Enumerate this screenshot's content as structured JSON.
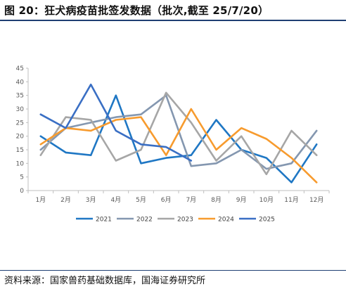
{
  "header": {
    "title": "图 20：狂犬病疫苗批签发数据（批次,截至 25/7/20）"
  },
  "footer": {
    "source": "资料来源：国家兽药基础数据库，国海证券研究所"
  },
  "colors": {
    "rule": "#1f3f73"
  },
  "chart_data": {
    "type": "line",
    "title": "",
    "xlabel": "",
    "ylabel": "",
    "categories": [
      "1月",
      "2月",
      "3月",
      "4月",
      "5月",
      "6月",
      "7月",
      "8月",
      "9月",
      "10月",
      "11月",
      "12月"
    ],
    "ylim": [
      0,
      45
    ],
    "yticks": [
      0,
      5,
      10,
      15,
      20,
      25,
      30,
      35,
      40,
      45
    ],
    "grid": false,
    "legend_position": "bottom",
    "series": [
      {
        "name": "2021",
        "color": "#1f77c4",
        "values": [
          20,
          14,
          13,
          35,
          10,
          12,
          13,
          26,
          15,
          12,
          3,
          17
        ]
      },
      {
        "name": "2022",
        "color": "#8497b0",
        "values": [
          15,
          23,
          25,
          27,
          28,
          35,
          9,
          10,
          15,
          8,
          10,
          22
        ]
      },
      {
        "name": "2023",
        "color": "#a6a6a6",
        "values": [
          13,
          27,
          26,
          11,
          15,
          36,
          25,
          11,
          20,
          6,
          22,
          13
        ]
      },
      {
        "name": "2024",
        "color": "#f79b2e",
        "values": [
          17,
          23,
          22,
          26,
          27,
          13,
          30,
          15,
          23,
          19,
          12,
          3
        ]
      },
      {
        "name": "2025",
        "color": "#3a6fc4",
        "values": [
          28,
          23,
          39,
          22,
          17,
          16,
          11,
          null,
          null,
          null,
          null,
          null
        ]
      }
    ]
  }
}
